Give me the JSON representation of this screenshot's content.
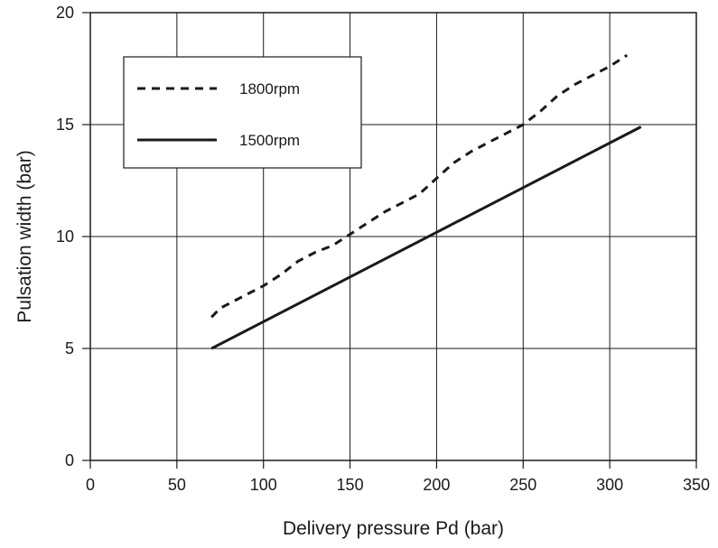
{
  "chart_data": {
    "type": "line",
    "title": "",
    "xlabel": "Delivery pressure Pd (bar)",
    "ylabel": "Pulsation width (bar)",
    "xlim": [
      0,
      350
    ],
    "ylim": [
      0,
      20
    ],
    "xticks": [
      0,
      50,
      100,
      150,
      200,
      250,
      300,
      350
    ],
    "yticks": [
      0,
      5,
      10,
      15,
      20
    ],
    "grid": true,
    "legend_position": "top-left",
    "series": [
      {
        "name": "1800rpm",
        "style": "dashed",
        "color": "#1a1a1a",
        "x": [
          70,
          75,
          80,
          90,
          100,
          110,
          120,
          130,
          140,
          150,
          160,
          170,
          180,
          190,
          200,
          210,
          220,
          230,
          240,
          250,
          260,
          270,
          280,
          290,
          300,
          310
        ],
        "y": [
          6.4,
          6.8,
          7.0,
          7.4,
          7.8,
          8.3,
          8.9,
          9.3,
          9.6,
          10.1,
          10.6,
          11.1,
          11.5,
          11.9,
          12.6,
          13.3,
          13.8,
          14.2,
          14.6,
          15.0,
          15.6,
          16.3,
          16.8,
          17.2,
          17.6,
          18.1
        ]
      },
      {
        "name": "1500rpm",
        "style": "solid",
        "color": "#1a1a1a",
        "x": [
          70,
          318
        ],
        "y": [
          5.0,
          14.9
        ]
      }
    ]
  }
}
